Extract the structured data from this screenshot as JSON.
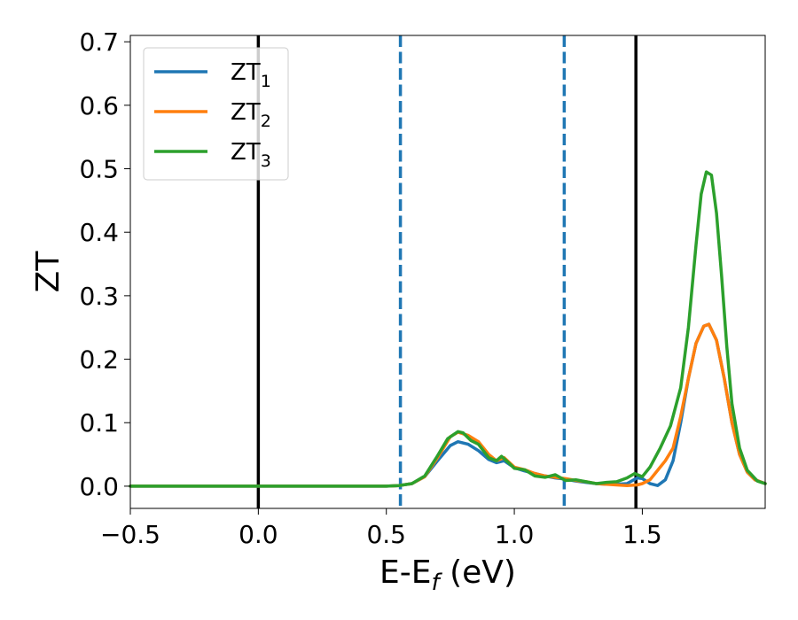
{
  "chart_data": {
    "type": "line",
    "title": "",
    "xlabel": {
      "main": "E-E",
      "sub": "f",
      "unit": " (eV)"
    },
    "ylabel": "ZT",
    "xlim": [
      -0.5,
      1.98
    ],
    "ylim": [
      -0.035,
      0.71
    ],
    "xticks": [
      -0.5,
      0.0,
      0.5,
      1.0,
      1.5
    ],
    "xtick_labels": [
      "−0.5",
      "0.0",
      "0.5",
      "1.0",
      "1.5"
    ],
    "yticks": [
      0.0,
      0.1,
      0.2,
      0.3,
      0.4,
      0.5,
      0.6,
      0.7
    ],
    "ytick_labels": [
      "0.0",
      "0.1",
      "0.2",
      "0.3",
      "0.4",
      "0.5",
      "0.6",
      "0.7"
    ],
    "grid": false,
    "legend": "top-left",
    "vlines": [
      {
        "x": 0.0,
        "color": "#000000",
        "style": "solid"
      },
      {
        "x": 1.475,
        "color": "#000000",
        "style": "solid"
      },
      {
        "x": 0.555,
        "color": "#1f77b4",
        "style": "dashed"
      },
      {
        "x": 1.195,
        "color": "#1f77b4",
        "style": "dashed"
      }
    ],
    "series": [
      {
        "name": "ZT",
        "name_sub": "1",
        "color": "#1f77b4",
        "x": [
          -0.5,
          0.5,
          0.55,
          0.6,
          0.65,
          0.7,
          0.75,
          0.78,
          0.82,
          0.86,
          0.9,
          0.93,
          0.96,
          1.0,
          1.04,
          1.08,
          1.12,
          1.16,
          1.2,
          1.24,
          1.28,
          1.32,
          1.36,
          1.4,
          1.44,
          1.48,
          1.5,
          1.53,
          1.56,
          1.59,
          1.62,
          1.65,
          1.68,
          1.71,
          1.74,
          1.76,
          1.79,
          1.82,
          1.85,
          1.88,
          1.91,
          1.94,
          1.98
        ],
        "y": [
          0.0,
          0.0,
          0.001,
          0.004,
          0.015,
          0.04,
          0.064,
          0.07,
          0.066,
          0.056,
          0.042,
          0.037,
          0.04,
          0.029,
          0.024,
          0.02,
          0.016,
          0.013,
          0.011,
          0.008,
          0.006,
          0.004,
          0.003,
          0.003,
          0.004,
          0.013,
          0.012,
          0.004,
          0.001,
          0.01,
          0.04,
          0.1,
          0.17,
          0.225,
          0.252,
          0.255,
          0.23,
          0.17,
          0.1,
          0.05,
          0.022,
          0.01,
          0.004
        ]
      },
      {
        "name": "ZT",
        "name_sub": "2",
        "color": "#ff7f0e",
        "x": [
          -0.5,
          0.5,
          0.55,
          0.6,
          0.65,
          0.7,
          0.75,
          0.78,
          0.82,
          0.86,
          0.9,
          0.93,
          0.96,
          1.0,
          1.04,
          1.08,
          1.12,
          1.16,
          1.2,
          1.24,
          1.28,
          1.32,
          1.36,
          1.4,
          1.44,
          1.48,
          1.5,
          1.53,
          1.56,
          1.59,
          1.62,
          1.65,
          1.68,
          1.71,
          1.74,
          1.76,
          1.79,
          1.82,
          1.85,
          1.88,
          1.91,
          1.94,
          1.98
        ],
        "y": [
          0.0,
          0.0,
          0.001,
          0.004,
          0.015,
          0.045,
          0.078,
          0.085,
          0.08,
          0.07,
          0.05,
          0.04,
          0.045,
          0.03,
          0.026,
          0.02,
          0.016,
          0.014,
          0.012,
          0.009,
          0.007,
          0.004,
          0.003,
          0.002,
          0.001,
          0.002,
          0.004,
          0.01,
          0.025,
          0.04,
          0.06,
          0.11,
          0.17,
          0.225,
          0.252,
          0.255,
          0.23,
          0.17,
          0.1,
          0.05,
          0.022,
          0.01,
          0.004
        ]
      },
      {
        "name": "ZT",
        "name_sub": "3",
        "color": "#2ca02c",
        "x": [
          -0.5,
          0.5,
          0.55,
          0.6,
          0.65,
          0.7,
          0.74,
          0.78,
          0.8,
          0.83,
          0.86,
          0.9,
          0.93,
          0.95,
          0.98,
          1.0,
          1.04,
          1.08,
          1.12,
          1.16,
          1.2,
          1.24,
          1.28,
          1.32,
          1.36,
          1.4,
          1.44,
          1.47,
          1.5,
          1.53,
          1.57,
          1.61,
          1.65,
          1.68,
          1.71,
          1.73,
          1.75,
          1.77,
          1.79,
          1.81,
          1.83,
          1.85,
          1.88,
          1.91,
          1.95,
          1.98
        ],
        "y": [
          0.0,
          0.0,
          0.001,
          0.004,
          0.016,
          0.048,
          0.075,
          0.086,
          0.084,
          0.072,
          0.066,
          0.045,
          0.04,
          0.047,
          0.036,
          0.028,
          0.026,
          0.016,
          0.014,
          0.018,
          0.009,
          0.01,
          0.007,
          0.004,
          0.006,
          0.007,
          0.013,
          0.02,
          0.015,
          0.03,
          0.06,
          0.095,
          0.155,
          0.25,
          0.38,
          0.46,
          0.495,
          0.49,
          0.43,
          0.33,
          0.22,
          0.13,
          0.06,
          0.025,
          0.008,
          0.004
        ]
      }
    ]
  }
}
